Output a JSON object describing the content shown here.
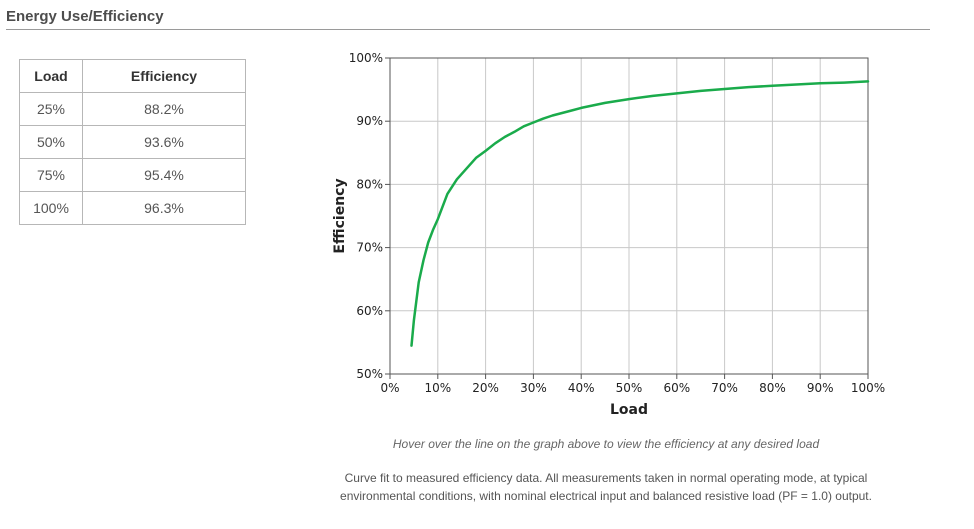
{
  "section": {
    "title": "Energy Use/Efficiency"
  },
  "table": {
    "headers": [
      "Load",
      "Efficiency"
    ],
    "rows": [
      [
        "25%",
        "88.2%"
      ],
      [
        "50%",
        "93.6%"
      ],
      [
        "75%",
        "95.4%"
      ],
      [
        "100%",
        "96.3%"
      ]
    ]
  },
  "chart_data": {
    "type": "line",
    "xlabel": "Load",
    "ylabel": "Efficiency",
    "xlim": [
      0,
      100
    ],
    "ylim": [
      50,
      100
    ],
    "x_ticks": [
      0,
      10,
      20,
      30,
      40,
      50,
      60,
      70,
      80,
      90,
      100
    ],
    "y_ticks": [
      50,
      60,
      70,
      80,
      90,
      100
    ],
    "x_tick_labels": [
      "0%",
      "10%",
      "20%",
      "30%",
      "40%",
      "50%",
      "60%",
      "70%",
      "80%",
      "90%",
      "100%"
    ],
    "y_tick_labels": [
      "50%",
      "60%",
      "70%",
      "80%",
      "90%",
      "100%"
    ],
    "grid": true,
    "series": [
      {
        "color": "#1aab4b",
        "x": [
          4.5,
          5,
          6,
          7,
          8,
          9,
          10,
          12,
          14,
          16,
          18,
          20,
          22,
          24,
          26,
          28,
          30,
          32,
          34,
          36,
          38,
          40,
          45,
          50,
          55,
          60,
          65,
          70,
          75,
          80,
          85,
          90,
          95,
          100
        ],
        "y": [
          54.5,
          58.5,
          64.5,
          68,
          70.8,
          72.8,
          74.5,
          78.5,
          80.8,
          82.5,
          84.2,
          85.3,
          86.5,
          87.5,
          88.3,
          89.2,
          89.8,
          90.4,
          90.9,
          91.3,
          91.7,
          92.1,
          92.9,
          93.5,
          94.0,
          94.4,
          94.8,
          95.1,
          95.4,
          95.6,
          95.8,
          96.0,
          96.1,
          96.3
        ]
      }
    ]
  },
  "notes": {
    "hover": "Hover over the line on the graph above to view the efficiency at any desired load",
    "footnote": "Curve fit to measured efficiency data. All measurements taken in normal operating mode, at typical environmental conditions, with nominal electrical input and balanced resistive load (PF = 1.0) output."
  }
}
